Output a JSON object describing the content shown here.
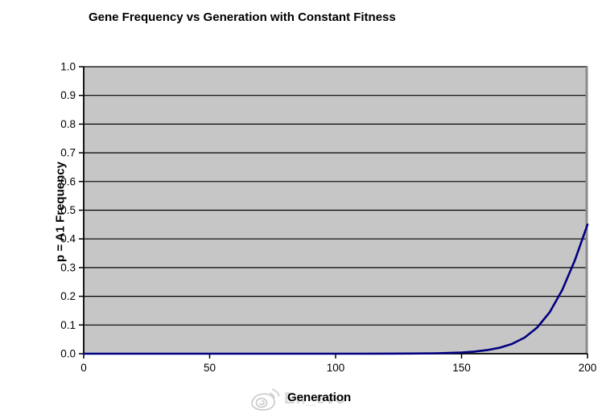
{
  "chart_data": {
    "type": "line",
    "title": "Gene Frequency vs Generation with Constant Fitness",
    "xlabel": "Generation",
    "ylabel": "p = A1 Frequency",
    "xlim": [
      0,
      200
    ],
    "ylim": [
      0.0,
      1.0
    ],
    "x_ticks": [
      0,
      50,
      100,
      150,
      200
    ],
    "x_tick_labels": [
      "0",
      "50",
      "100",
      "150",
      "200"
    ],
    "y_ticks": [
      0.0,
      0.1,
      0.2,
      0.3,
      0.4,
      0.5,
      0.6,
      0.7,
      0.8,
      0.9,
      1.0
    ],
    "y_tick_labels": [
      "0.0",
      "0.1",
      "0.2",
      "0.3",
      "0.4",
      "0.5",
      "0.6",
      "0.7",
      "0.8",
      "0.9",
      "1.0"
    ],
    "grid": "horizontal",
    "legend": "none",
    "series": [
      {
        "name": "p",
        "x": [
          0,
          10,
          20,
          30,
          40,
          50,
          60,
          70,
          80,
          90,
          100,
          110,
          120,
          130,
          140,
          145,
          150,
          155,
          160,
          165,
          170,
          175,
          180,
          185,
          190,
          195,
          200
        ],
        "y": [
          0,
          0,
          0,
          0,
          0,
          0,
          0,
          0,
          0,
          0,
          0,
          0.0001,
          0.0002,
          0.0005,
          0.0015,
          0.0025,
          0.0043,
          0.0072,
          0.0122,
          0.0204,
          0.0339,
          0.056,
          0.0911,
          0.1449,
          0.2227,
          0.3263,
          0.4502
        ]
      }
    ]
  },
  "colors": {
    "background": "#ffffff",
    "plot_bg": "#c6c6c6",
    "gridline": "#000000",
    "axis": "#000000",
    "right_border": "#8c8c8c",
    "line": "#000080",
    "tick_label": "#000000"
  },
  "watermark": {
    "icon": "weibo-eye-logo",
    "text": "En_evo"
  }
}
